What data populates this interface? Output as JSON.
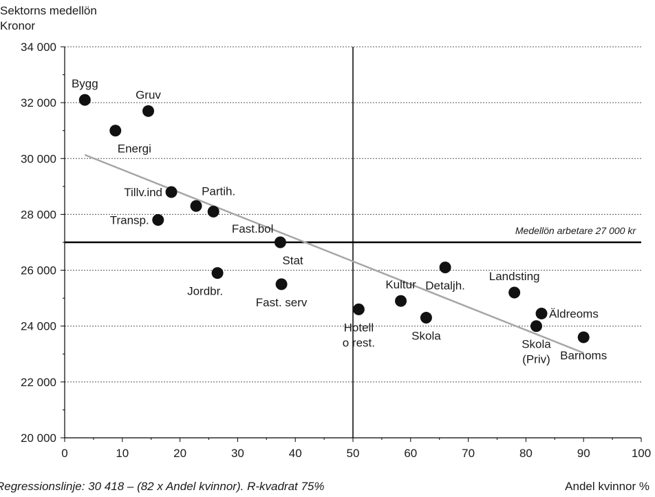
{
  "chart_data": {
    "type": "scatter",
    "title": "",
    "ylabel_line1": "Sektorns medellön",
    "ylabel_line2": "Kronor",
    "xlabel": "Andel kvinnor %",
    "xlim": [
      0,
      100
    ],
    "ylim": [
      20000,
      34000
    ],
    "x_ticks": [
      0,
      10,
      20,
      30,
      40,
      50,
      60,
      70,
      80,
      90,
      100
    ],
    "x_tick_labels": [
      "0",
      "10",
      "20",
      "30",
      "40",
      "50",
      "60",
      "70",
      "80",
      "90",
      "100"
    ],
    "y_ticks": [
      20000,
      22000,
      24000,
      26000,
      28000,
      30000,
      32000,
      34000
    ],
    "y_tick_labels": [
      "20 000",
      "22 000",
      "24 000",
      "26 000",
      "28 000",
      "30 000",
      "32 000",
      "34 000"
    ],
    "grid": "horizontal dotted",
    "points": [
      {
        "label": "Bygg",
        "x": 3.5,
        "y": 32100,
        "label_pos": "above"
      },
      {
        "label": "Gruv",
        "x": 14.5,
        "y": 31700,
        "label_pos": "above"
      },
      {
        "label": "Energi",
        "x": 8.8,
        "y": 31000,
        "label_pos": "below-right"
      },
      {
        "label": "Tillv.ind",
        "x": 18.5,
        "y": 28800,
        "label_pos": "left"
      },
      {
        "label": "Partih.",
        "x": 22.8,
        "y": 28300,
        "label_pos": "above-right"
      },
      {
        "label": "",
        "x": 25.8,
        "y": 28100,
        "label_pos": "none"
      },
      {
        "label": "Transp.",
        "x": 16.2,
        "y": 27800,
        "label_pos": "left"
      },
      {
        "label": "Fast.bol",
        "x": 37.4,
        "y": 27000,
        "label_pos": "above-left"
      },
      {
        "label": "Stat",
        "x": 37.4,
        "y": 27000,
        "label_pos": "below-right"
      },
      {
        "label": "Jordbr.",
        "x": 26.5,
        "y": 25900,
        "label_pos": "below-left"
      },
      {
        "label": "Fast. serv",
        "x": 37.6,
        "y": 25500,
        "label_pos": "below"
      },
      {
        "label": "Detaljh.",
        "x": 66.0,
        "y": 26100,
        "label_pos": "below"
      },
      {
        "label": "Kultur",
        "x": 58.3,
        "y": 24900,
        "label_pos": "above"
      },
      {
        "label": "Landsting",
        "x": 78.0,
        "y": 25200,
        "label_pos": "above"
      },
      {
        "label": "Hotell\no rest.",
        "x": 51.0,
        "y": 24600,
        "label_pos": "below"
      },
      {
        "label": "Skola",
        "x": 62.7,
        "y": 24300,
        "label_pos": "below"
      },
      {
        "label": "Äldreoms",
        "x": 82.7,
        "y": 24450,
        "label_pos": "right"
      },
      {
        "label": "Skola\n(Priv)",
        "x": 81.8,
        "y": 24000,
        "label_pos": "below"
      },
      {
        "label": "Barnoms",
        "x": 90.0,
        "y": 23600,
        "label_pos": "below"
      }
    ],
    "regression": {
      "x": [
        3.5,
        90
      ],
      "y": [
        30131,
        23038
      ]
    },
    "vline_x": 50,
    "hline": {
      "y": 27000,
      "label": "Medellön arbetare 27 000 kr"
    },
    "annotation": "Regressionslinje: 30 418 – (82 x Andel kvinnor). R-kvadrat 75%"
  }
}
